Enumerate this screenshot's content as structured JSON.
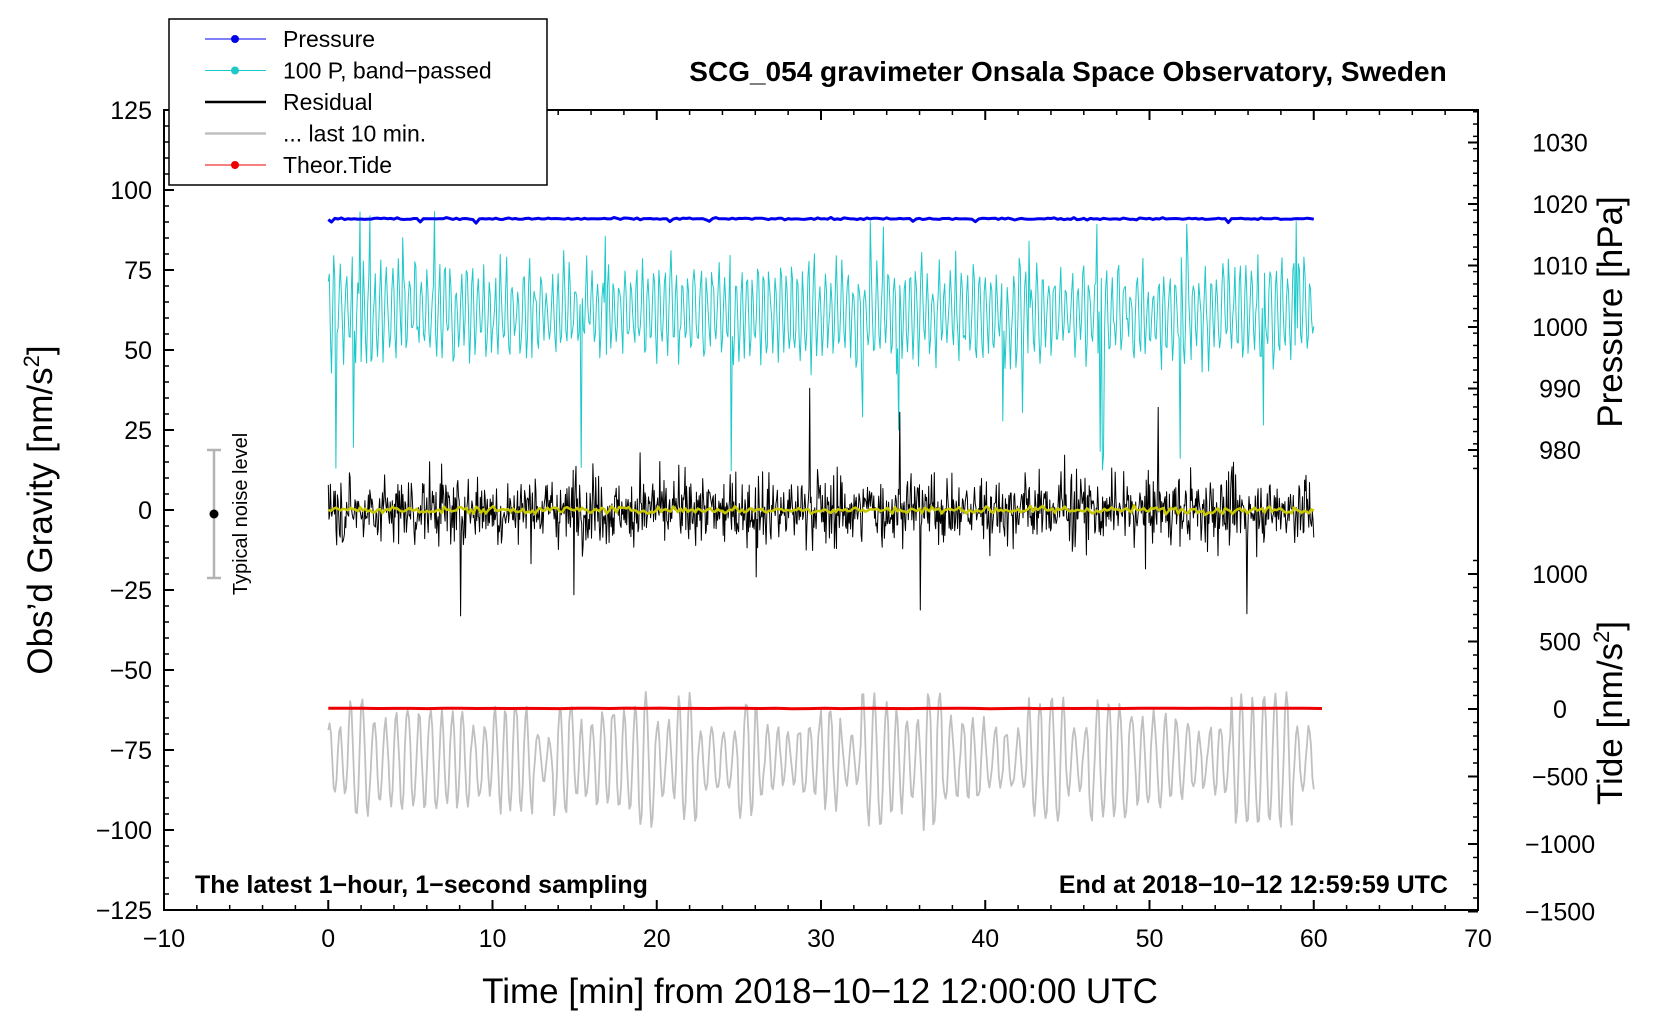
{
  "chart_data": {
    "type": "line",
    "title": "SCG_054 gravimeter Onsala Space Observatory, Sweden",
    "xlabel": "Time [min] from 2018−10−12 12:00:00 UTC",
    "xlim": [
      -10,
      70
    ],
    "xticks": [
      -10,
      0,
      10,
      20,
      30,
      40,
      50,
      60,
      70
    ],
    "xtick_labels": [
      "−10",
      "0",
      "10",
      "20",
      "30",
      "40",
      "50",
      "60",
      "70"
    ],
    "left_axis": {
      "label_main": "Obs’d Gravity [nm/s",
      "label_sup": "2",
      "label_end": "]",
      "ylim": [
        -125,
        125
      ],
      "ticks": [
        125,
        100,
        75,
        50,
        25,
        0,
        -25,
        -50,
        -75,
        -100,
        -125
      ],
      "tick_labels": [
        "125",
        "100",
        "75",
        "50",
        "25",
        "0",
        "−25",
        "−50",
        "−75",
        "−100",
        "−125"
      ]
    },
    "pressure_axis": {
      "label": "Pressure [hPa]",
      "ticks": [
        1030,
        1020,
        1010,
        1000,
        990,
        980
      ],
      "tick_labels": [
        "1030",
        "1020",
        "1010",
        "1000",
        "990",
        "980"
      ]
    },
    "tide_axis": {
      "label_main": "Tide [nm/s",
      "label_sup": "2",
      "label_end": "]",
      "ticks": [
        1000,
        500,
        0,
        -500,
        -1000,
        -1500
      ],
      "tick_labels": [
        "1000",
        "500",
        "0",
        "−500",
        "−1000",
        "−1500"
      ]
    },
    "legend": {
      "placement": "top-left",
      "entries": [
        {
          "label": "Pressure",
          "color": "#0000ee",
          "marker": true
        },
        {
          "label": "100 P, band−passed",
          "color": "#1ec8c8",
          "marker": true
        },
        {
          "label": "Residual",
          "color": "#000000",
          "marker": false
        },
        {
          "label": "... last 10 min.",
          "color": "#c0c0c0",
          "marker": false
        },
        {
          "label": "Theor.Tide",
          "color": "#ee0000",
          "marker": true
        }
      ]
    },
    "noise_label": "Typical noise level",
    "noise_level_range": [
      -20,
      20
    ],
    "annotation_left": "The latest 1−hour, 1−second sampling",
    "annotation_right": "End at 2018−10−12 12:59:59 UTC",
    "series": [
      {
        "name": "Pressure",
        "color": "#0000ee",
        "plotted_on": "left",
        "x_range": [
          0,
          60
        ],
        "level": 91,
        "approx_hpa": 1018
      },
      {
        "name": "100 P, band−passed",
        "color": "#1ec8c8",
        "plotted_on": "left",
        "x_range": [
          0,
          60
        ],
        "center": 62,
        "amplitude": 15
      },
      {
        "name": "Residual",
        "color": "#000000",
        "plotted_on": "left",
        "x_range": [
          0,
          60
        ],
        "center": 0,
        "amplitude": 22
      },
      {
        "name": "Residual smoothed",
        "color": "#c8c800",
        "plotted_on": "left",
        "x_range": [
          0,
          60
        ],
        "center": 0,
        "amplitude": 2
      },
      {
        "name": "... last 10 min.",
        "color": "#c0c0c0",
        "plotted_on": "left",
        "x_range": [
          0,
          60
        ],
        "center": -78,
        "amplitude": 14
      },
      {
        "name": "Theor.Tide",
        "color": "#ee0000",
        "plotted_on": "left",
        "x_range": [
          0,
          60.5
        ],
        "level": -62,
        "approx_nm_s2": 0
      }
    ]
  }
}
